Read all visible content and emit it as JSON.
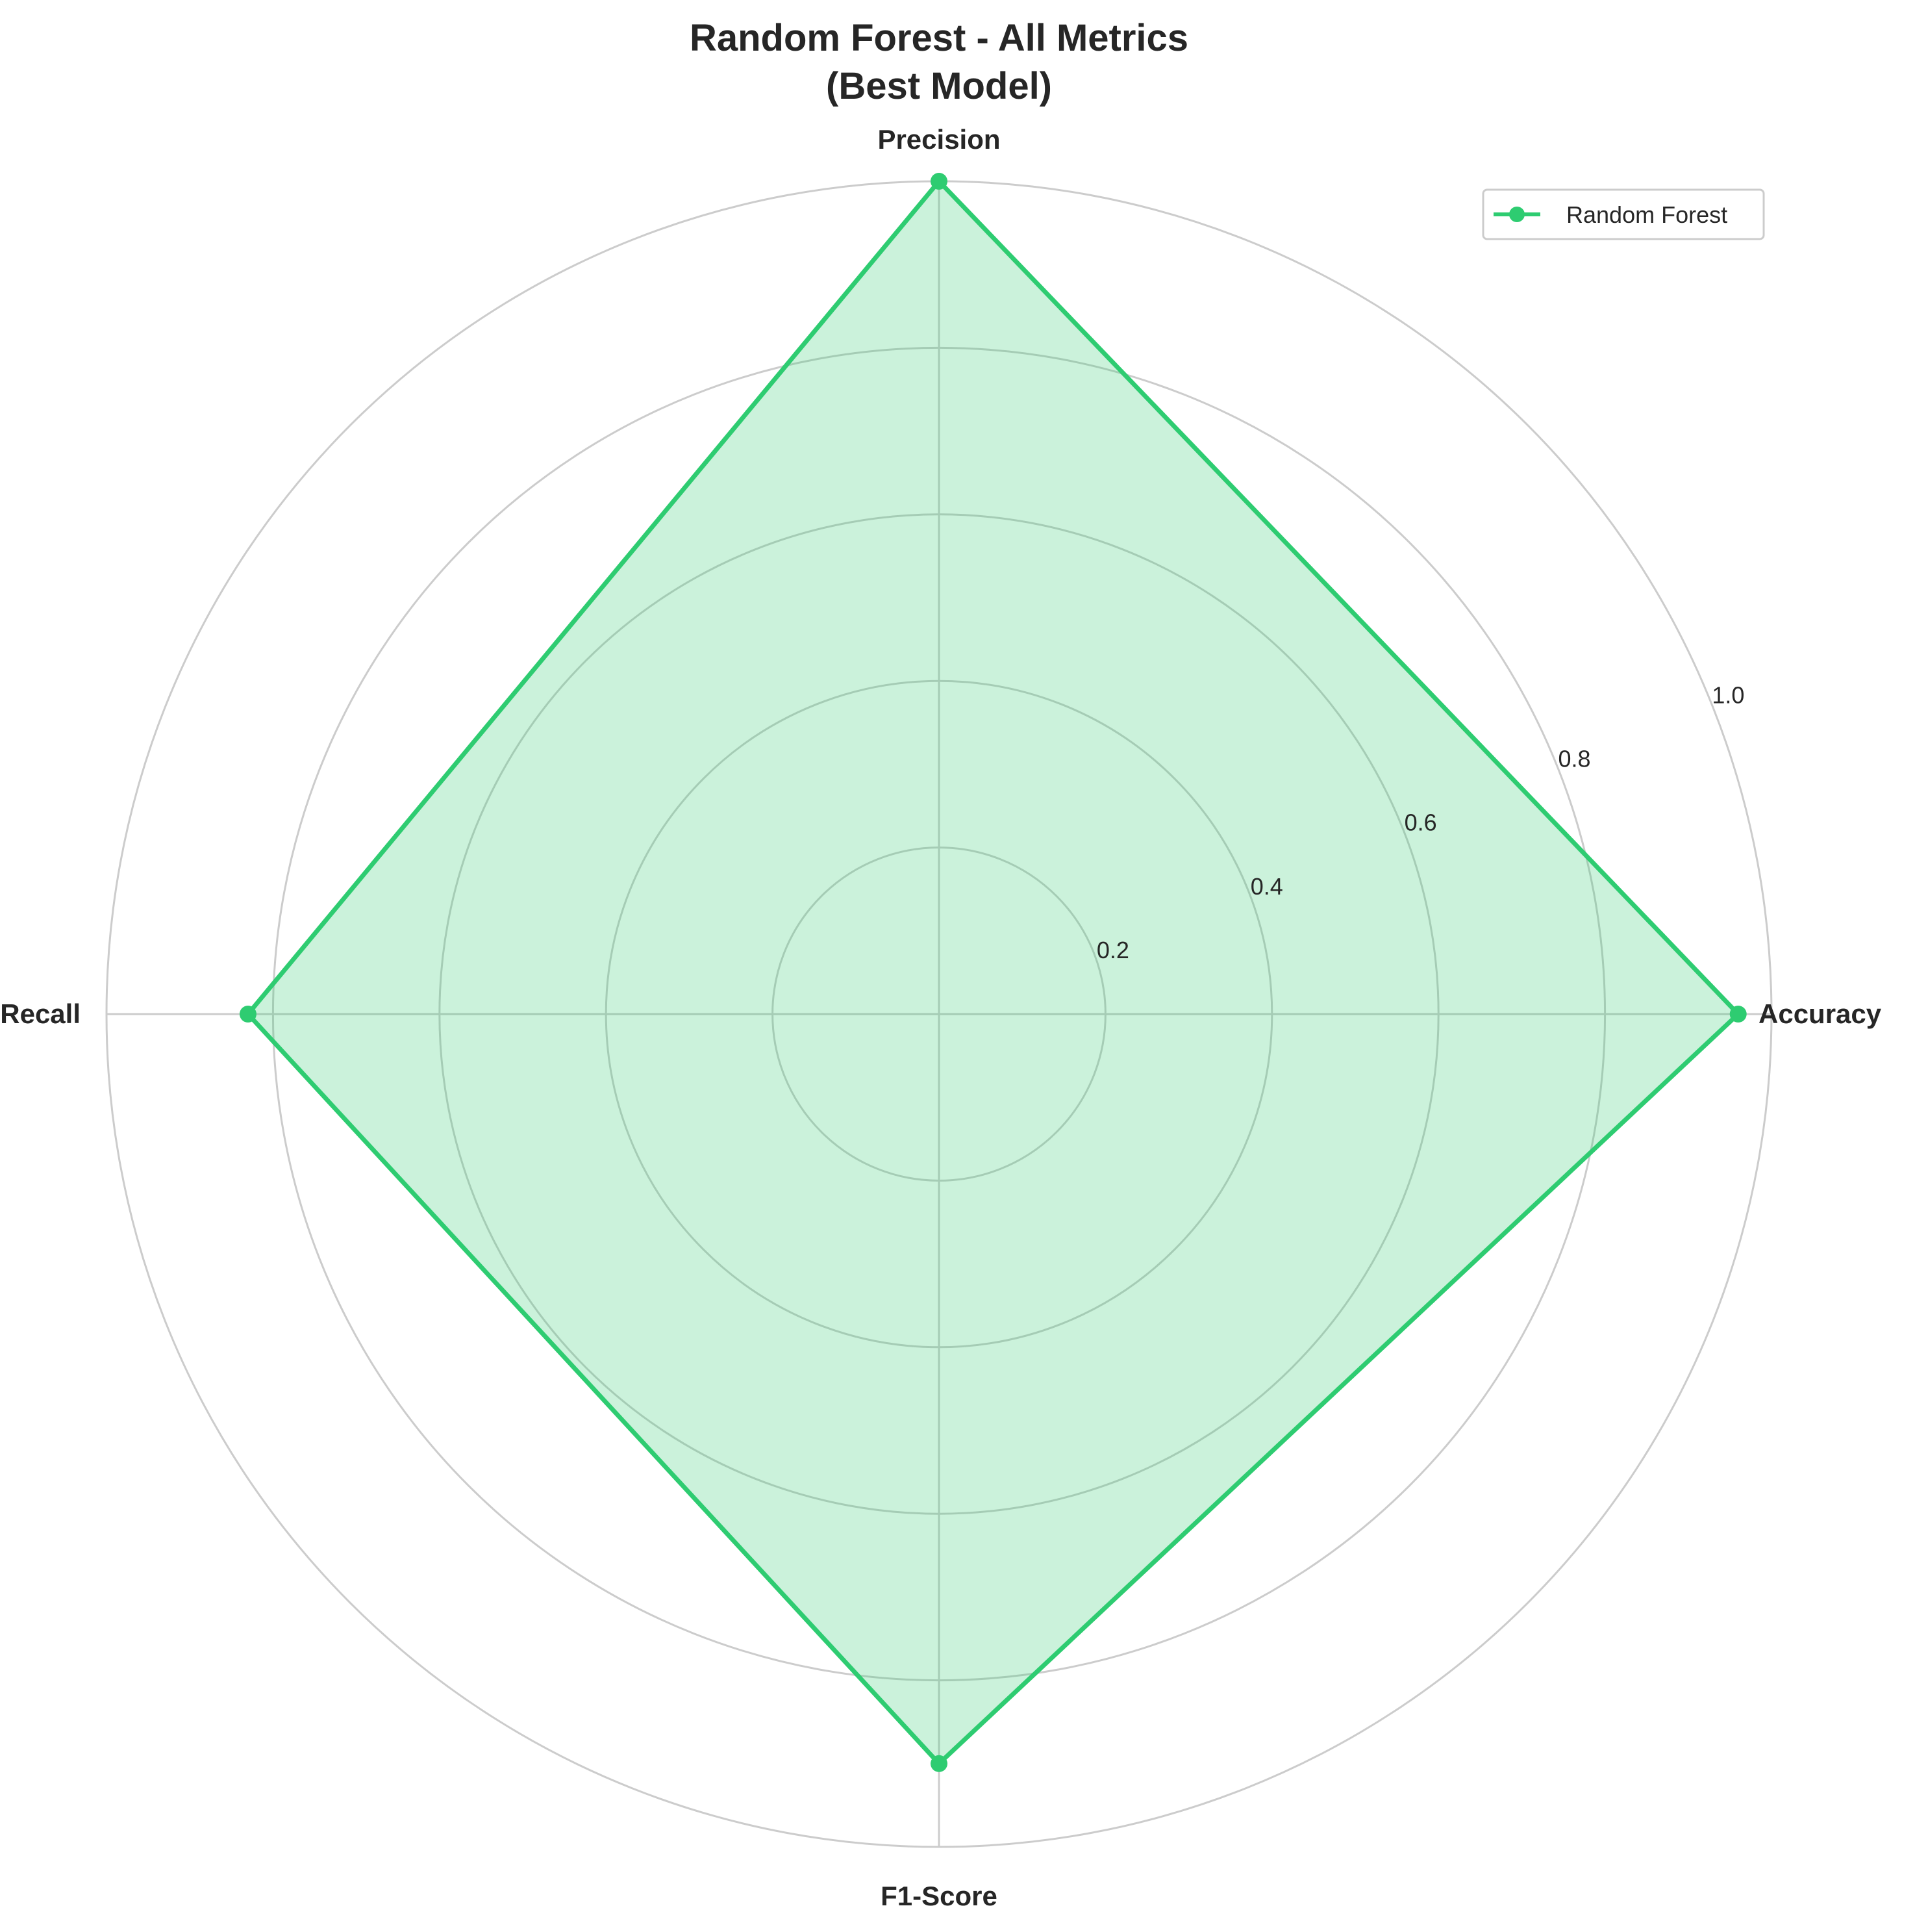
{
  "chart_data": {
    "type": "radar",
    "title": [
      "Random Forest - All Metrics",
      "(Best Model)"
    ],
    "axes": [
      "Accuracy",
      "Precision",
      "Recall",
      "F1-Score"
    ],
    "series": [
      {
        "name": "Random Forest",
        "values": [
          0.96,
          1.0,
          0.83,
          0.9
        ]
      }
    ],
    "rlim": [
      0,
      1.0
    ],
    "rticks": [
      0.2,
      0.4,
      0.6,
      0.8,
      1.0
    ],
    "rtick_labels": [
      "0.2",
      "0.4",
      "0.6",
      "0.8",
      "1.0"
    ],
    "grid": true,
    "legend_position": "top-right",
    "colors": {
      "series": "#2ecc71",
      "grid": "#cccccc",
      "text": "#262626"
    }
  }
}
